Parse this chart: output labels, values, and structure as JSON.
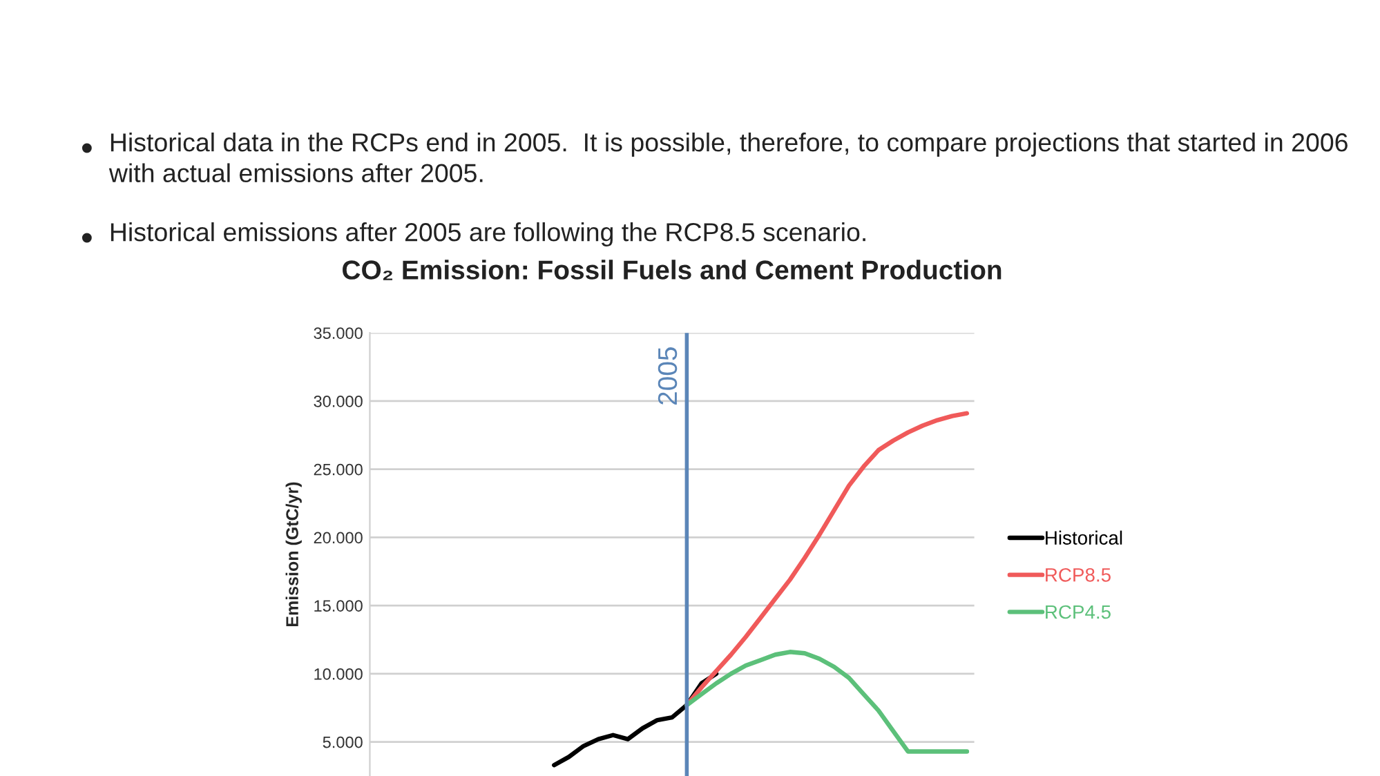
{
  "chart_data": {
    "type": "line",
    "title": "CO₂ Emission: Fossil Fuels and Cement Production",
    "ylabel": "Emission (GtC/yr)",
    "annotations": [
      "Historical data in the RCPs end in 2005.  It is possible, therefore, to compare projections that started in 2006 with actual emissions after 2005.",
      "Historical emissions after 2005 are following the RCP8.5 scenario."
    ],
    "categories": [
      null,
      null,
      null,
      null,
      null,
      null,
      null,
      null,
      null,
      null,
      null,
      null,
      null,
      null,
      null,
      null,
      null,
      null,
      null,
      null,
      null,
      null,
      null,
      null,
      null,
      null,
      null,
      null,
      null,
      null,
      null,
      null,
      null,
      null,
      null,
      null,
      null,
      null,
      null,
      null,
      null
    ],
    "series": [
      {
        "name": "Historical",
        "color": "#000000",
        "values": [
          null,
          null,
          null,
          null,
          null,
          null,
          null,
          null,
          null,
          null,
          null,
          null,
          3.3,
          3.9,
          4.7,
          5.2,
          5.5,
          5.2,
          6.0,
          6.6,
          6.8,
          7.7,
          9.3,
          10.0,
          null,
          null,
          null,
          null,
          null,
          null,
          null,
          null,
          null,
          null,
          null,
          null,
          null,
          null,
          null,
          null,
          null
        ]
      },
      {
        "name": "RCP8.5",
        "color": "#f05a5a",
        "values": [
          null,
          null,
          null,
          null,
          null,
          null,
          null,
          null,
          null,
          null,
          null,
          null,
          null,
          null,
          null,
          null,
          null,
          null,
          null,
          null,
          null,
          7.7,
          9.0,
          10.2,
          11.4,
          12.7,
          14.1,
          15.5,
          16.9,
          18.5,
          20.2,
          22.0,
          23.8,
          25.2,
          26.4,
          27.1,
          27.7,
          28.2,
          28.6,
          28.9,
          29.1
        ]
      },
      {
        "name": "RCP4.5",
        "color": "#5cc07a",
        "values": [
          null,
          null,
          null,
          null,
          null,
          null,
          null,
          null,
          null,
          null,
          null,
          null,
          null,
          null,
          null,
          null,
          null,
          null,
          null,
          null,
          null,
          7.7,
          8.5,
          9.3,
          10.0,
          10.6,
          11.0,
          11.4,
          11.6,
          11.5,
          11.1,
          10.5,
          9.7,
          8.5,
          7.3,
          5.8,
          4.3,
          4.3,
          4.3,
          4.3,
          4.3
        ]
      }
    ],
    "ylim": [
      2.5,
      35
    ],
    "yticks": [
      {
        "value": 5,
        "label": "5.000"
      },
      {
        "value": 10,
        "label": "10.000"
      },
      {
        "value": 15,
        "label": "15.000"
      },
      {
        "value": 20,
        "label": "20.000"
      },
      {
        "value": 25,
        "label": "25.000"
      },
      {
        "value": 30,
        "label": "30.000"
      },
      {
        "value": 35,
        "label": "35.000"
      }
    ],
    "tick_labels": "y",
    "grid": "y",
    "legend": "right",
    "ref_lines": [
      {
        "axis": "x",
        "label": "2005",
        "color": "#5b86b8"
      }
    ]
  }
}
